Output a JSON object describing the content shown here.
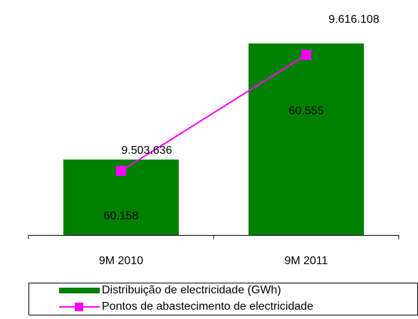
{
  "chart_data": {
    "type": "bar_line",
    "categories": [
      "9M 2010",
      "9M 2011"
    ],
    "series": [
      {
        "name": "Distribuição de electricidade (GWh)",
        "type": "bar",
        "color": "#008000",
        "values": [
          60158,
          60555
        ],
        "value_labels": [
          "60.158",
          "60.555"
        ]
      },
      {
        "name": "Pontos de abastecimento de electricidade",
        "type": "line",
        "axis": "y2",
        "color": "#ff00ff",
        "values": [
          9503636,
          9616108
        ],
        "value_labels": [
          "9.503.636",
          "9.616.108"
        ]
      }
    ],
    "ylim": [
      59900,
      60655
    ],
    "y2lim": [
      9441500,
      9655400
    ],
    "legend": "bottom"
  }
}
